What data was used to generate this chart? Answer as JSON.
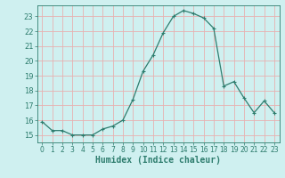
{
  "x": [
    0,
    1,
    2,
    3,
    4,
    5,
    6,
    7,
    8,
    9,
    10,
    11,
    12,
    13,
    14,
    15,
    16,
    17,
    18,
    19,
    20,
    21,
    22,
    23
  ],
  "y": [
    15.9,
    15.3,
    15.3,
    15.0,
    15.0,
    15.0,
    15.4,
    15.6,
    16.0,
    17.4,
    19.3,
    20.4,
    21.9,
    23.0,
    23.4,
    23.2,
    22.9,
    22.2,
    18.3,
    18.6,
    17.5,
    16.5,
    17.3,
    16.5
  ],
  "line_color": "#2e7d6e",
  "marker": "+",
  "marker_size": 3.5,
  "marker_linewidth": 0.8,
  "linewidth": 0.9,
  "background_color": "#cff0f0",
  "grid_color": "#e8b0b0",
  "tick_color": "#2e7d6e",
  "xlabel": "Humidex (Indice chaleur)",
  "xlim": [
    -0.5,
    23.5
  ],
  "ylim": [
    14.5,
    23.75
  ],
  "yticks": [
    15,
    16,
    17,
    18,
    19,
    20,
    21,
    22,
    23
  ],
  "xticks": [
    0,
    1,
    2,
    3,
    4,
    5,
    6,
    7,
    8,
    9,
    10,
    11,
    12,
    13,
    14,
    15,
    16,
    17,
    18,
    19,
    20,
    21,
    22,
    23
  ],
  "xtick_labels": [
    "0",
    "1",
    "2",
    "3",
    "4",
    "5",
    "6",
    "7",
    "8",
    "9",
    "10",
    "11",
    "12",
    "13",
    "14",
    "15",
    "16",
    "17",
    "18",
    "19",
    "20",
    "21",
    "22",
    "23"
  ],
  "ytick_labels": [
    "15",
    "16",
    "17",
    "18",
    "19",
    "20",
    "21",
    "22",
    "23"
  ],
  "xlabel_fontsize": 7,
  "tick_fontsize": 5.5
}
